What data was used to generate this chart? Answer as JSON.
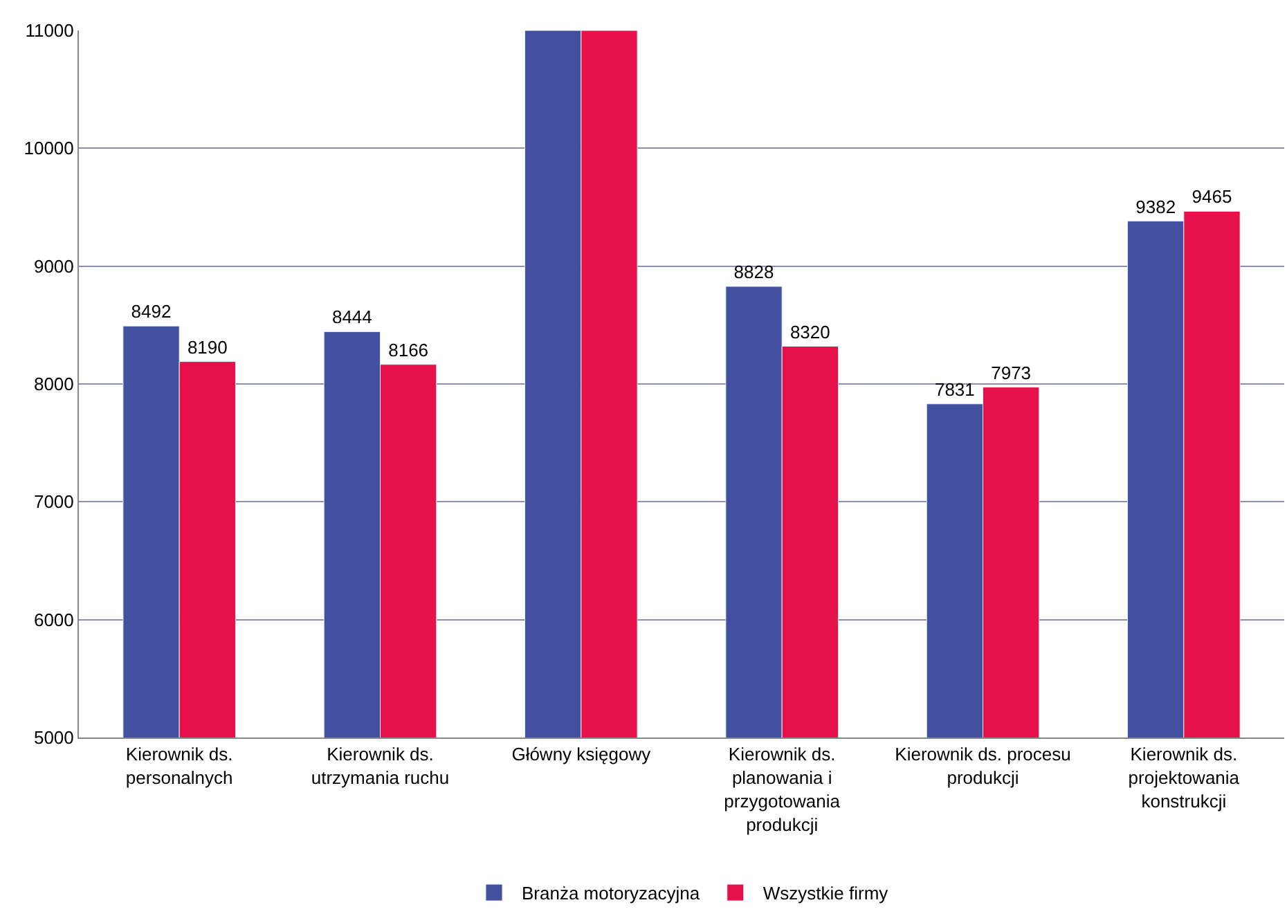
{
  "chart_data": {
    "type": "bar",
    "categories": [
      "Kierownik ds. personalnych",
      "Kierownik ds. utrzymania ruchu",
      "Główny księgowy",
      "Kierownik ds. planowania i przygotowania produkcji",
      "Kierownik ds. procesu produkcji",
      "Kierownik ds. projektowania konstrukcji"
    ],
    "series": [
      {
        "name": "Branża motoryzacyjna",
        "color": "#4350a0",
        "values": [
          8492,
          8444,
          11000,
          8828,
          7831,
          9382
        ],
        "value_labels": [
          "8492",
          "8444",
          null,
          "8828",
          "7831",
          "9382"
        ]
      },
      {
        "name": "Wszystkie firmy",
        "color": "#e6104a",
        "values": [
          8190,
          8166,
          11000,
          8320,
          7973,
          9465
        ],
        "value_labels": [
          "8190",
          "8166",
          null,
          "8320",
          "7973",
          "9465"
        ]
      }
    ],
    "ylim": [
      5000,
      11000
    ],
    "yticks": [
      5000,
      6000,
      7000,
      8000,
      9000,
      10000,
      11000
    ],
    "grid": "y",
    "legend": "bottom"
  }
}
